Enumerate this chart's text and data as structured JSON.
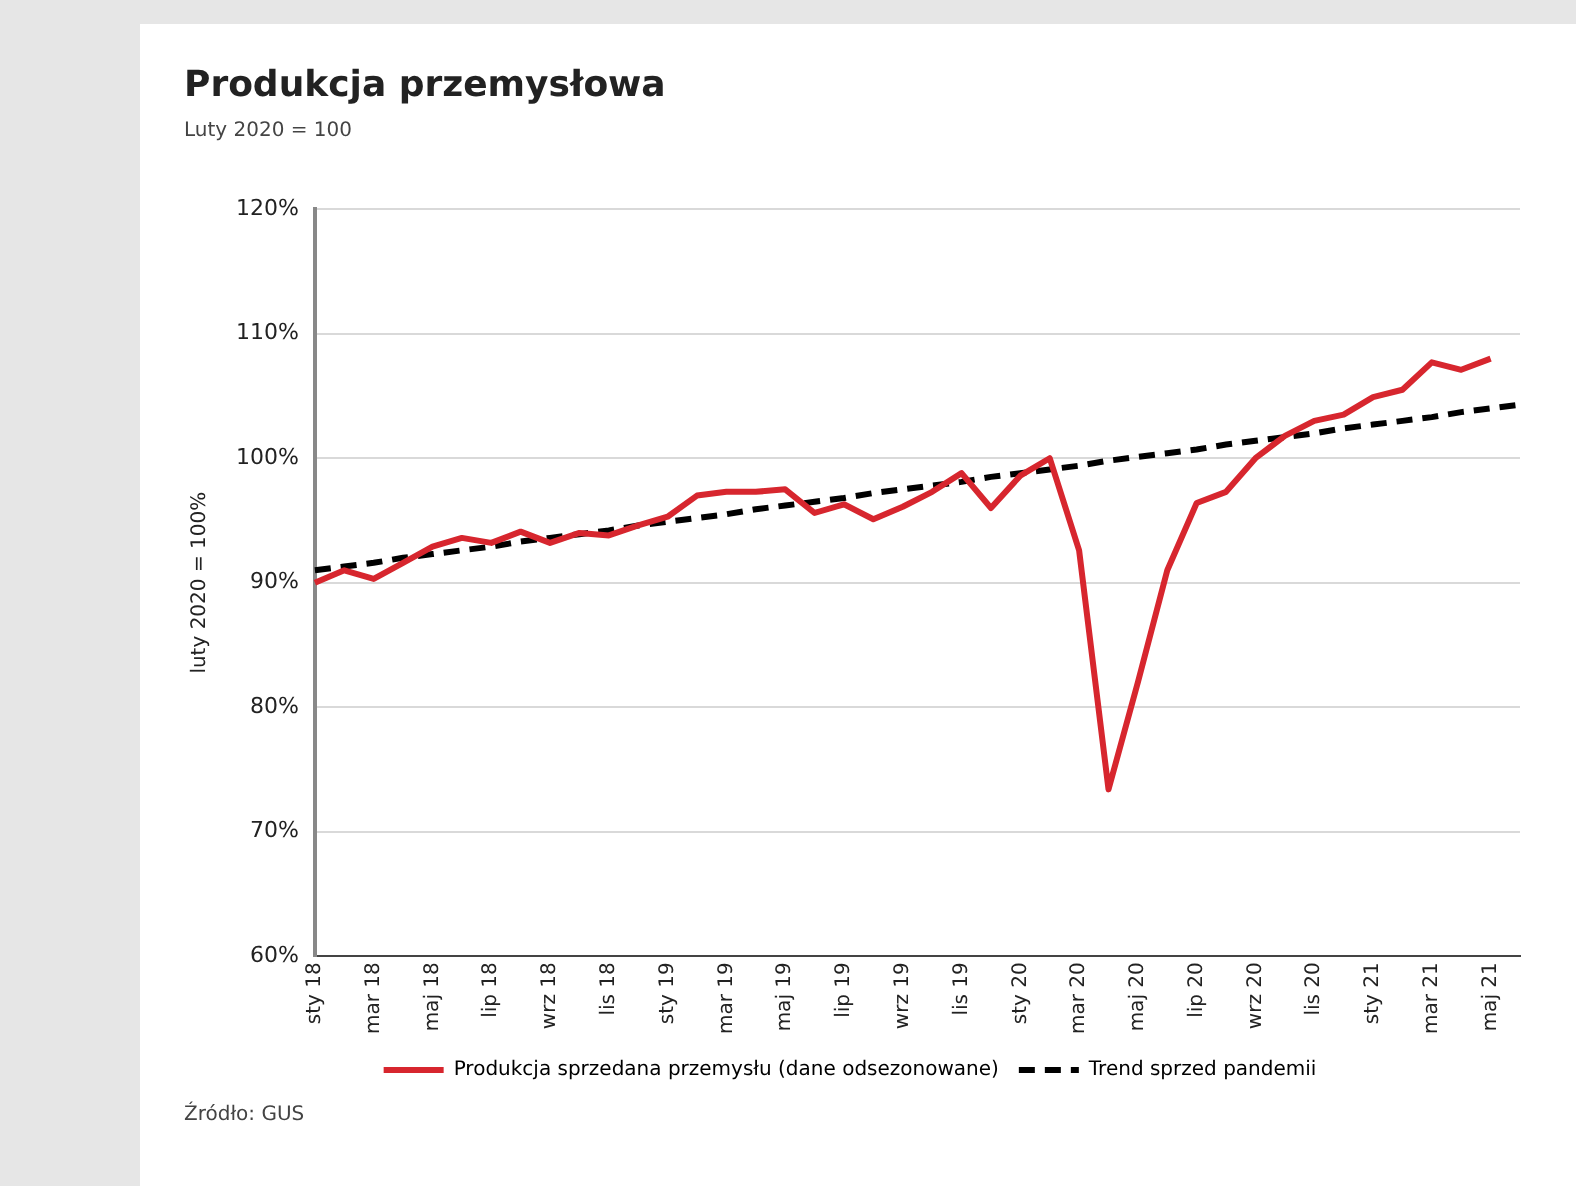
{
  "chart_data": {
    "type": "line",
    "title": "Produkcja przemysłowa",
    "subtitle": "Luty 2020 = 100",
    "ylabel": "luty 2020 = 100%",
    "categories": [
      "sty 18",
      null,
      "mar 18",
      null,
      "maj 18",
      null,
      "lip 18",
      null,
      "wrz 18",
      null,
      "lis 18",
      null,
      "sty 19",
      null,
      "mar 19",
      null,
      "maj 19",
      null,
      "lip 19",
      null,
      "wrz 19",
      null,
      "lis 19",
      null,
      "sty 20",
      null,
      "mar 20",
      null,
      "maj 20",
      null,
      "lip 20",
      null,
      "wrz 20",
      null,
      "lis 20",
      null,
      "sty 21",
      null,
      "mar 21",
      null,
      "maj 21",
      null
    ],
    "series": [
      {
        "name": "Produkcja sprzedana przemysłu (dane odsezonowane)",
        "color": "#d7262e",
        "line_style": "solid",
        "values": [
          90.0,
          91.0,
          90.3,
          91.6,
          92.9,
          93.6,
          93.2,
          94.1,
          93.2,
          94.0,
          93.8,
          94.6,
          95.3,
          97.0,
          97.3,
          97.3,
          97.5,
          95.6,
          96.3,
          95.1,
          96.1,
          97.3,
          98.8,
          96.0,
          98.6,
          100.0,
          92.6,
          73.4,
          82.0,
          91.0,
          96.4,
          97.3,
          100.0,
          101.8,
          103.0,
          103.5,
          104.9,
          105.5,
          107.7,
          107.1,
          108.0,
          null
        ]
      },
      {
        "name": "Trend sprzed pandemii",
        "color": "#000000",
        "line_style": "dashed",
        "values": [
          91.0,
          91.3,
          91.6,
          92.0,
          92.3,
          92.6,
          92.9,
          93.3,
          93.6,
          93.9,
          94.2,
          94.6,
          94.9,
          95.2,
          95.5,
          95.9,
          96.2,
          96.5,
          96.8,
          97.2,
          97.5,
          97.8,
          98.1,
          98.5,
          98.8,
          99.1,
          99.4,
          99.8,
          100.1,
          100.4,
          100.7,
          101.1,
          101.4,
          101.7,
          102.0,
          102.4,
          102.7,
          103.0,
          103.3,
          103.7,
          104.0,
          104.3
        ]
      }
    ],
    "ylim": [
      60,
      120
    ],
    "yticks": [
      {
        "value": 60,
        "label": "60%"
      },
      {
        "value": 70,
        "label": "70%"
      },
      {
        "value": 80,
        "label": "80%"
      },
      {
        "value": 90,
        "label": "90%"
      },
      {
        "value": 100,
        "label": "100%"
      },
      {
        "value": 110,
        "label": "110%"
      },
      {
        "value": 120,
        "label": "120%"
      }
    ],
    "grid": "y",
    "legend": "bottom",
    "marker": "none",
    "annotations": [
      "Źródło: GUS"
    ]
  }
}
